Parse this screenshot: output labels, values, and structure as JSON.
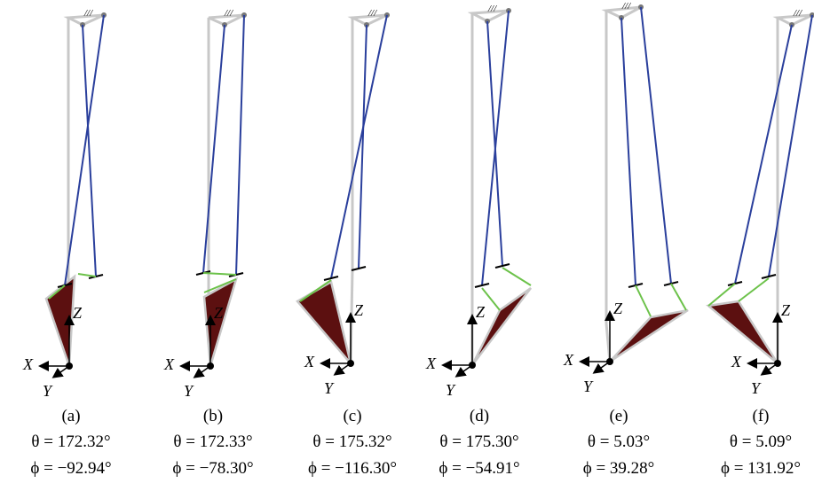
{
  "figure": {
    "panels": [
      {
        "label": "(a)",
        "theta": "θ = 172.32°",
        "phi": "ϕ = −92.94°",
        "axes": {
          "x": "X",
          "y": "Y",
          "z": "Z"
        }
      },
      {
        "label": "(b)",
        "theta": "θ = 172.33°",
        "phi": "ϕ = −78.30°",
        "axes": {
          "x": "X",
          "y": "Y",
          "z": "Z"
        }
      },
      {
        "label": "(c)",
        "theta": "θ = 175.32°",
        "phi": "ϕ = −116.30°",
        "axes": {
          "x": "X",
          "y": "Y",
          "z": "Z"
        }
      },
      {
        "label": "(d)",
        "theta": "θ = 175.30°",
        "phi": "ϕ = −54.91°",
        "axes": {
          "x": "X",
          "y": "Y",
          "z": "Z"
        }
      },
      {
        "label": "(e)",
        "theta": "θ = 5.03°",
        "phi": "ϕ = 39.28°",
        "axes": {
          "x": "X",
          "y": "Y",
          "z": "Z"
        }
      },
      {
        "label": "(f)",
        "theta": "θ = 5.09°",
        "phi": "ϕ = 131.92°",
        "axes": {
          "x": "X",
          "y": "Y",
          "z": "Z"
        }
      }
    ]
  }
}
